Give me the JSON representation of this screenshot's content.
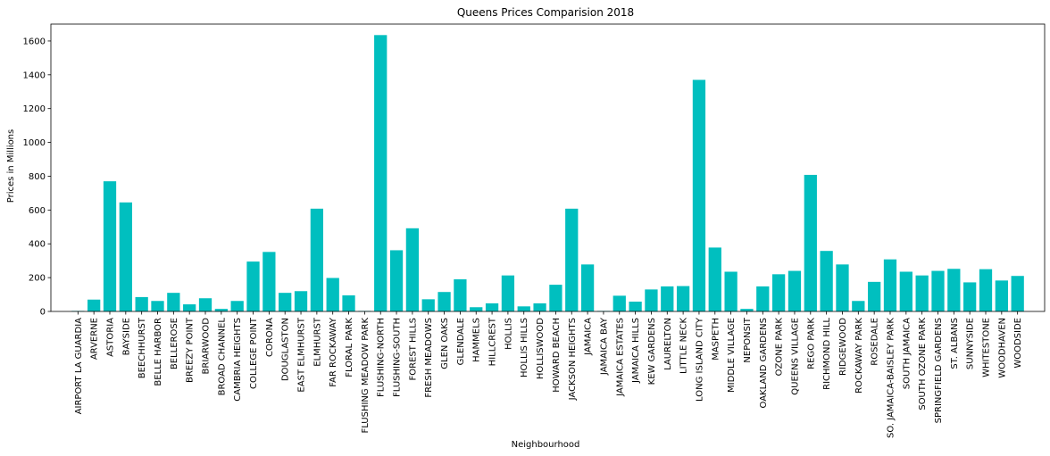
{
  "chart_data": {
    "type": "bar",
    "title": "Queens Prices Comparision 2018",
    "xlabel": "Neighbourhood",
    "ylabel": "Prices in Millions",
    "ylim": [
      0,
      1700
    ],
    "yticks": [
      0,
      200,
      400,
      600,
      800,
      1000,
      1200,
      1400,
      1600
    ],
    "bar_color": "#00bfbf",
    "grid": false,
    "categories": [
      "AIRPORT LA GUARDIA",
      "ARVERNE",
      "ASTORIA",
      "BAYSIDE",
      "BEECHHURST",
      "BELLE HARBOR",
      "BELLEROSE",
      "BREEZY POINT",
      "BRIARWOOD",
      "BROAD CHANNEL",
      "CAMBRIA HEIGHTS",
      "COLLEGE POINT",
      "CORONA",
      "DOUGLASTON",
      "EAST ELMHURST",
      "ELMHURST",
      "FAR ROCKAWAY",
      "FLORAL PARK",
      "FLUSHING MEADOW PARK",
      "FLUSHING-NORTH",
      "FLUSHING-SOUTH",
      "FOREST HILLS",
      "FRESH MEADOWS",
      "GLEN OAKS",
      "GLENDALE",
      "HAMMELS",
      "HILLCREST",
      "HOLLIS",
      "HOLLIS HILLS",
      "HOLLISWOOD",
      "HOWARD BEACH",
      "JACKSON HEIGHTS",
      "JAMAICA",
      "JAMAICA BAY",
      "JAMAICA ESTATES",
      "JAMAICA HILLS",
      "KEW GARDENS",
      "LAURELTON",
      "LITTLE NECK",
      "LONG ISLAND CITY",
      "MASPETH",
      "MIDDLE VILLAGE",
      "NEPONSIT",
      "OAKLAND GARDENS",
      "OZONE PARK",
      "QUEENS VILLAGE",
      "REGO PARK",
      "RICHMOND HILL",
      "RIDGEWOOD",
      "ROCKAWAY PARK",
      "ROSEDALE",
      "SO. JAMAICA-BAISLEY PARK",
      "SOUTH JAMAICA",
      "SOUTH OZONE PARK",
      "SPRINGFIELD GARDENS",
      "ST. ALBANS",
      "SUNNYSIDE",
      "WHITESTONE",
      "WOODHAVEN",
      "WOODSIDE"
    ],
    "values": [
      3,
      70,
      770,
      645,
      85,
      62,
      110,
      42,
      78,
      15,
      62,
      295,
      352,
      110,
      120,
      608,
      198,
      95,
      3,
      1635,
      362,
      492,
      72,
      115,
      190,
      25,
      48,
      213,
      30,
      48,
      158,
      608,
      278,
      3,
      93,
      58,
      130,
      148,
      150,
      1370,
      378,
      235,
      15,
      148,
      220,
      240,
      808,
      358,
      278,
      62,
      175,
      308,
      235,
      213,
      240,
      252,
      172,
      250,
      183,
      210
    ]
  }
}
